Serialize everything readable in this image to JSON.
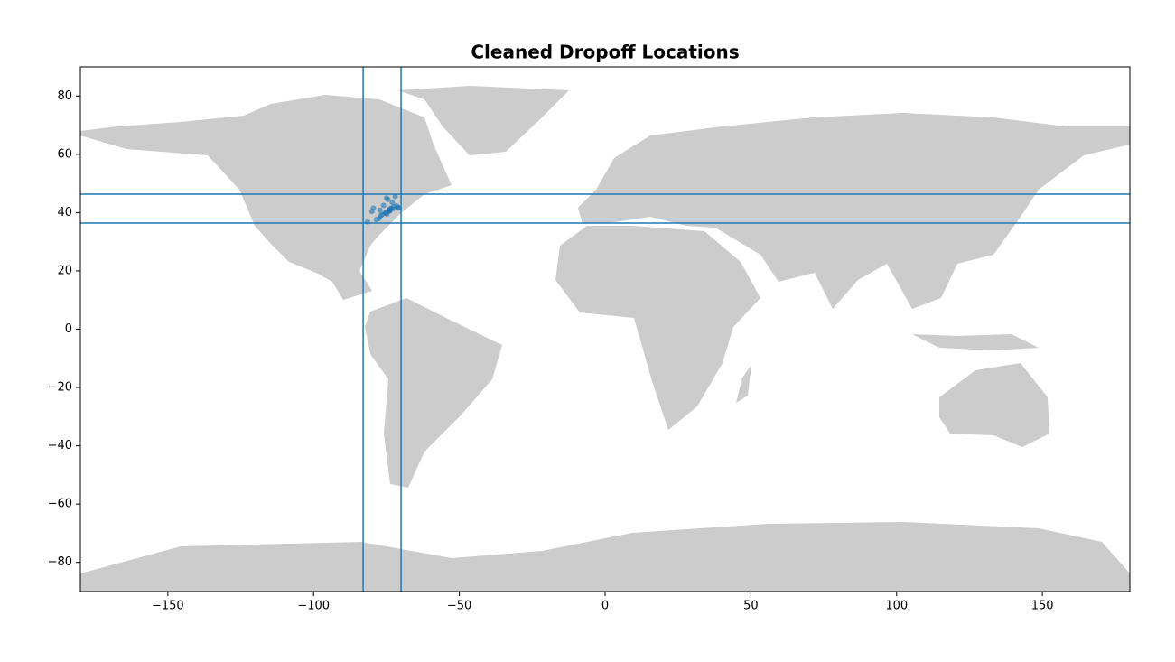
{
  "chart_data": {
    "type": "scatter",
    "title": "Cleaned Dropoff Locations",
    "xlim": [
      -180,
      180
    ],
    "ylim": [
      -90,
      90
    ],
    "xticks": [
      {
        "value": -150,
        "label": "−150"
      },
      {
        "value": -100,
        "label": "−100"
      },
      {
        "value": -50,
        "label": "−50"
      },
      0,
      50,
      100,
      150
    ],
    "yticks": [
      {
        "value": -80,
        "label": "−80"
      },
      {
        "value": -60,
        "label": "−60"
      },
      {
        "value": -40,
        "label": "−40"
      },
      {
        "value": -20,
        "label": "−20"
      },
      0,
      20,
      40,
      60,
      80
    ],
    "vlines": [
      -83,
      -70
    ],
    "hlines": [
      36.4,
      46.3
    ],
    "line_color": "#1f77b4",
    "series": [
      {
        "color": "#1f77b4",
        "x": [
          -74.0,
          -73.9,
          -73.8,
          -74.1,
          -73.7,
          -74.2,
          -73.5,
          -72.9,
          -72.5,
          -71.5,
          -71.0,
          -70.8,
          -75.2,
          -75.5,
          -76.5,
          -77.0,
          -77.5,
          -78.5,
          -79.5,
          -80.0,
          -76.0,
          -73.0,
          -74.5,
          -75.0,
          -72.0,
          -81.5,
          -77.2,
          -74.8
        ],
        "y": [
          40.7,
          40.8,
          40.6,
          41.0,
          41.2,
          40.5,
          41.5,
          41.3,
          42.0,
          42.3,
          41.8,
          41.5,
          40.0,
          39.8,
          39.3,
          38.9,
          38.0,
          37.6,
          41.5,
          40.4,
          42.5,
          43.5,
          44.5,
          45.0,
          45.5,
          36.8,
          40.8,
          39.5
        ]
      }
    ]
  }
}
